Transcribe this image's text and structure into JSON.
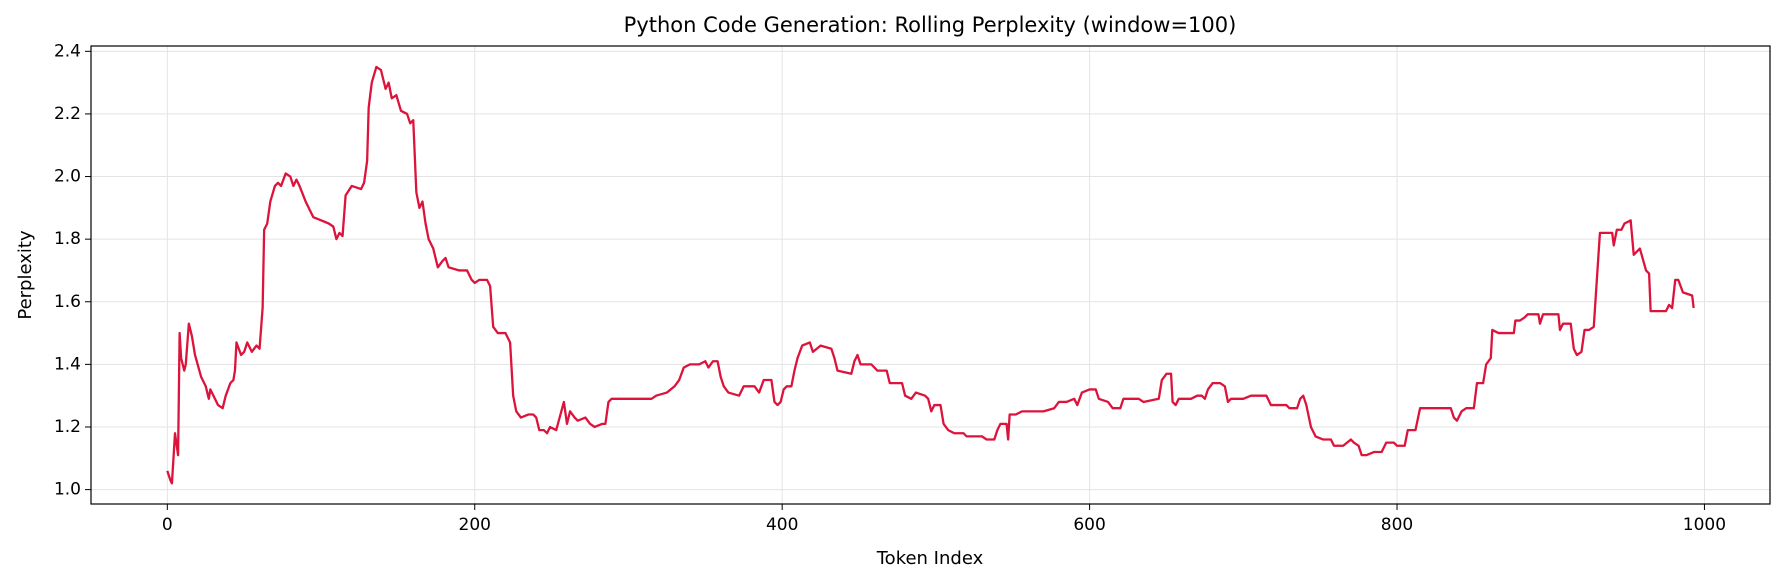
{
  "chart_data": {
    "type": "line",
    "title": "Python Code Generation: Rolling Perplexity (window=100)",
    "xlabel": "Token Index",
    "ylabel": "Perplexity",
    "color": "#dc143c",
    "grid": true,
    "xlim": [
      -49.65,
      1042.65
    ],
    "ylim": [
      0.954,
      2.417
    ],
    "xticks": [
      0,
      200,
      400,
      600,
      800,
      1000
    ],
    "yticks": [
      {
        "value": 1.0,
        "label": "1.0"
      },
      1.2,
      1.4,
      1.6,
      1.8,
      {
        "value": 2.0,
        "label": "2.0"
      },
      2.2,
      2.4
    ],
    "x": [
      0,
      2,
      3,
      5,
      7,
      8,
      9,
      11,
      12,
      14,
      16,
      18,
      22,
      25,
      27,
      28,
      30,
      33,
      36,
      38,
      41,
      43,
      44,
      45,
      48,
      50,
      52,
      55,
      58,
      60,
      62,
      63,
      65,
      67,
      70,
      72,
      74,
      77,
      80,
      82,
      84,
      86,
      90,
      95,
      100,
      105,
      108,
      110,
      112,
      114,
      116,
      120,
      126,
      128,
      130,
      131,
      133,
      136,
      139,
      142,
      144,
      146,
      149,
      152,
      156,
      158,
      160,
      162,
      164,
      166,
      168,
      170,
      173,
      176,
      179,
      181,
      183,
      190,
      195,
      198,
      200,
      203,
      208,
      210,
      212,
      215,
      220,
      223,
      225,
      227,
      230,
      235,
      238,
      240,
      242,
      245,
      247,
      249,
      253,
      258,
      260,
      262,
      265,
      267,
      272,
      275,
      278,
      283,
      285,
      287,
      289,
      300,
      315,
      318,
      325,
      330,
      333,
      336,
      340,
      346,
      350,
      352,
      355,
      358,
      360,
      362,
      365,
      372,
      375,
      382,
      385,
      388,
      393,
      395,
      397,
      399,
      401,
      403,
      406,
      408,
      410,
      413,
      418,
      420,
      425,
      432,
      434,
      436,
      445,
      447,
      449,
      451,
      458,
      462,
      468,
      470,
      478,
      480,
      484,
      487,
      493,
      495,
      497,
      499,
      503,
      505,
      508,
      512,
      518,
      520,
      525,
      530,
      533,
      538,
      540,
      542,
      546,
      547,
      548,
      552,
      556,
      570,
      577,
      580,
      585,
      590,
      592,
      595,
      600,
      604,
      606,
      612,
      615,
      620,
      622,
      632,
      635,
      645,
      647,
      650,
      653,
      654,
      656,
      658,
      666,
      670,
      673,
      675,
      677,
      680,
      685,
      688,
      690,
      692,
      700,
      705,
      715,
      718,
      728,
      730,
      735,
      737,
      739,
      741,
      744,
      747,
      752,
      757,
      759,
      765,
      770,
      772,
      775,
      777,
      780,
      785,
      790,
      793,
      798,
      800,
      805,
      807,
      812,
      815,
      818,
      828,
      835,
      837,
      839,
      842,
      845,
      850,
      852,
      856,
      858,
      861,
      862,
      866,
      868,
      876,
      877,
      880,
      883,
      885,
      892,
      893,
      895,
      905,
      906,
      908,
      913,
      915,
      917,
      920,
      922,
      925,
      928,
      930,
      932,
      937,
      940,
      941,
      943,
      946,
      948,
      952,
      954,
      958,
      962,
      964,
      965,
      975,
      977,
      979,
      981,
      983,
      986,
      992,
      993
    ],
    "values": [
      1.06,
      1.03,
      1.02,
      1.18,
      1.11,
      1.5,
      1.42,
      1.38,
      1.4,
      1.53,
      1.49,
      1.43,
      1.36,
      1.33,
      1.29,
      1.32,
      1.3,
      1.27,
      1.26,
      1.3,
      1.34,
      1.35,
      1.38,
      1.47,
      1.43,
      1.44,
      1.47,
      1.44,
      1.46,
      1.45,
      1.58,
      1.83,
      1.85,
      1.92,
      1.97,
      1.98,
      1.97,
      2.01,
      2.0,
      1.97,
      1.99,
      1.97,
      1.92,
      1.87,
      1.86,
      1.85,
      1.84,
      1.8,
      1.82,
      1.81,
      1.94,
      1.97,
      1.96,
      1.98,
      2.05,
      2.22,
      2.3,
      2.35,
      2.34,
      2.28,
      2.3,
      2.25,
      2.26,
      2.21,
      2.2,
      2.17,
      2.18,
      1.95,
      1.9,
      1.92,
      1.85,
      1.8,
      1.77,
      1.71,
      1.73,
      1.74,
      1.71,
      1.7,
      1.7,
      1.67,
      1.66,
      1.67,
      1.67,
      1.65,
      1.52,
      1.5,
      1.5,
      1.47,
      1.3,
      1.25,
      1.23,
      1.24,
      1.24,
      1.23,
      1.19,
      1.19,
      1.18,
      1.2,
      1.19,
      1.28,
      1.21,
      1.25,
      1.23,
      1.22,
      1.23,
      1.21,
      1.2,
      1.21,
      1.21,
      1.28,
      1.29,
      1.29,
      1.29,
      1.3,
      1.31,
      1.33,
      1.35,
      1.39,
      1.4,
      1.4,
      1.41,
      1.39,
      1.41,
      1.41,
      1.36,
      1.33,
      1.31,
      1.3,
      1.33,
      1.33,
      1.31,
      1.35,
      1.35,
      1.28,
      1.27,
      1.28,
      1.32,
      1.33,
      1.33,
      1.38,
      1.42,
      1.46,
      1.47,
      1.44,
      1.46,
      1.45,
      1.42,
      1.38,
      1.37,
      1.41,
      1.43,
      1.4,
      1.4,
      1.38,
      1.38,
      1.34,
      1.34,
      1.3,
      1.29,
      1.31,
      1.3,
      1.29,
      1.25,
      1.27,
      1.27,
      1.21,
      1.19,
      1.18,
      1.18,
      1.17,
      1.17,
      1.17,
      1.16,
      1.16,
      1.19,
      1.21,
      1.21,
      1.16,
      1.24,
      1.24,
      1.25,
      1.25,
      1.26,
      1.28,
      1.28,
      1.29,
      1.27,
      1.31,
      1.32,
      1.32,
      1.29,
      1.28,
      1.26,
      1.26,
      1.29,
      1.29,
      1.28,
      1.29,
      1.35,
      1.37,
      1.37,
      1.28,
      1.27,
      1.29,
      1.29,
      1.3,
      1.3,
      1.29,
      1.32,
      1.34,
      1.34,
      1.33,
      1.28,
      1.29,
      1.29,
      1.3,
      1.3,
      1.27,
      1.27,
      1.26,
      1.26,
      1.29,
      1.3,
      1.27,
      1.2,
      1.17,
      1.16,
      1.16,
      1.14,
      1.14,
      1.16,
      1.15,
      1.14,
      1.11,
      1.11,
      1.12,
      1.12,
      1.15,
      1.15,
      1.14,
      1.14,
      1.19,
      1.19,
      1.26,
      1.26,
      1.26,
      1.26,
      1.23,
      1.22,
      1.25,
      1.26,
      1.26,
      1.34,
      1.34,
      1.4,
      1.42,
      1.51,
      1.5,
      1.5,
      1.5,
      1.54,
      1.54,
      1.55,
      1.56,
      1.56,
      1.53,
      1.56,
      1.56,
      1.51,
      1.53,
      1.53,
      1.45,
      1.43,
      1.44,
      1.51,
      1.51,
      1.52,
      1.67,
      1.82,
      1.82,
      1.82,
      1.78,
      1.83,
      1.83,
      1.85,
      1.86,
      1.75,
      1.77,
      1.7,
      1.69,
      1.57,
      1.57,
      1.59,
      1.58,
      1.67,
      1.67,
      1.63,
      1.62,
      1.58
    ]
  }
}
